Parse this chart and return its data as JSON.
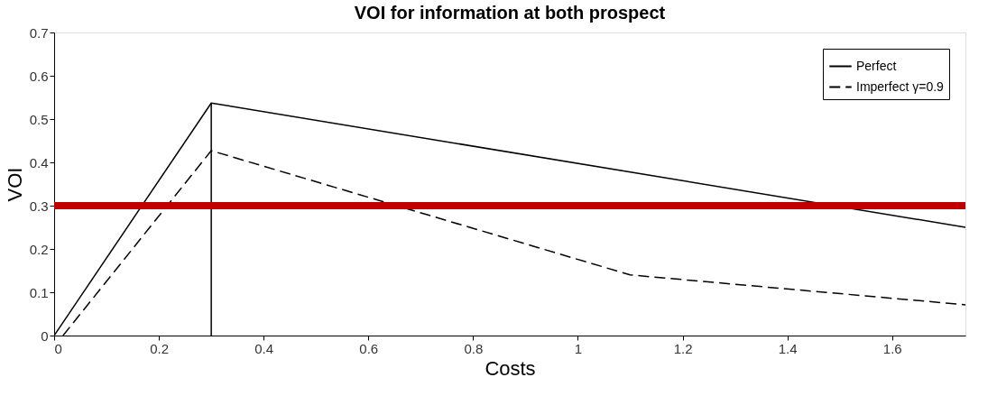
{
  "chart_data": {
    "type": "line",
    "title": "VOI for information at both prospect",
    "xlabel": "Costs",
    "ylabel": "VOI",
    "xlim": [
      0,
      1.74
    ],
    "xticks": [
      0,
      0.2,
      0.4,
      0.6,
      0.8,
      1,
      1.2,
      1.4,
      1.6
    ],
    "ylim": [
      0,
      0.7
    ],
    "yticks": [
      0,
      0.1,
      0.2,
      0.3,
      0.4,
      0.5,
      0.6,
      0.7
    ],
    "grid": false,
    "legend": "top right",
    "marker": "none",
    "series": [
      {
        "name": "Perfect",
        "color": "#000000",
        "line_style": "solid",
        "x": [
          0,
          0.3,
          1.74
        ],
        "values": [
          0,
          0.537,
          0.25
        ]
      },
      {
        "name": "Imperfect γ=0.9",
        "color": "#000000",
        "line_style": "dashed",
        "x": [
          0.017,
          0.3,
          1.1,
          1.74
        ],
        "values": [
          0,
          0.427,
          0.14,
          0.071
        ]
      },
      {
        "color": "#000000",
        "line_style": "solid",
        "x": [
          0.3,
          0.3
        ],
        "values": [
          0,
          0.537
        ]
      }
    ],
    "ref_lines": [
      {
        "axis": "y",
        "value": 0.3,
        "color": "#c00000",
        "line_style": "solid"
      }
    ]
  }
}
